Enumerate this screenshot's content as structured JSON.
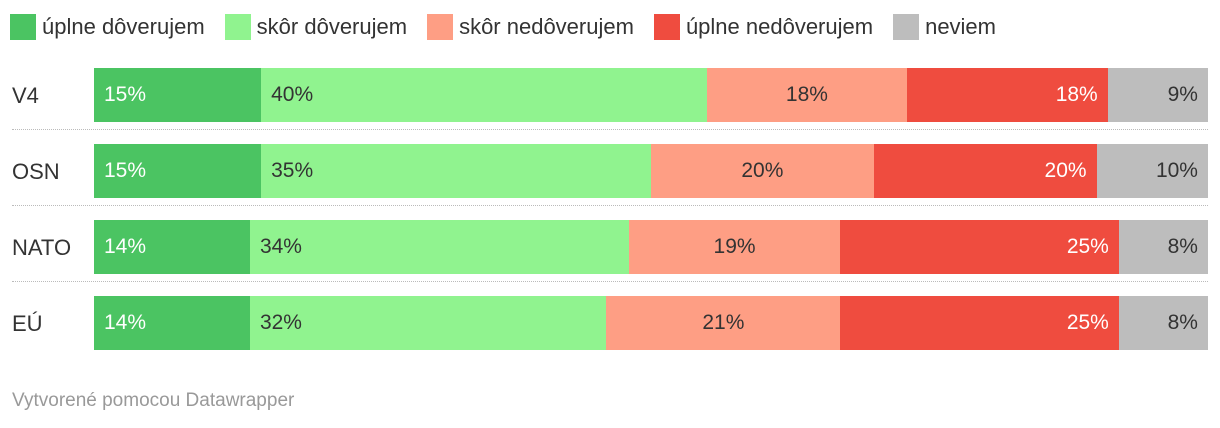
{
  "chart_data": {
    "type": "bar",
    "orientation": "horizontal",
    "stacked": true,
    "categories": [
      "V4",
      "OSN",
      "NATO",
      "EÚ"
    ],
    "series": [
      {
        "name": "úplne dôverujem",
        "color": "#4bc462",
        "values": [
          15,
          15,
          14,
          14
        ]
      },
      {
        "name": "skôr dôverujem",
        "color": "#90f38f",
        "values": [
          40,
          35,
          34,
          32
        ]
      },
      {
        "name": "skôr nedôverujem",
        "color": "#fe9e84",
        "values": [
          18,
          20,
          19,
          21
        ]
      },
      {
        "name": "úplne nedôverujem",
        "color": "#ef4c3f",
        "values": [
          18,
          20,
          25,
          25
        ]
      },
      {
        "name": "neviem",
        "color": "#bdbdbd",
        "values": [
          9,
          10,
          8,
          8
        ]
      }
    ],
    "value_suffix": "%",
    "label_colors": [
      "#ffffff",
      "#333333",
      "#333333",
      "#ffffff",
      "#333333"
    ],
    "label_align": [
      "left",
      "left",
      "center",
      "right",
      "right"
    ],
    "legend_position": "top-left"
  },
  "footer": "Vytvorené pomocou Datawrapper"
}
